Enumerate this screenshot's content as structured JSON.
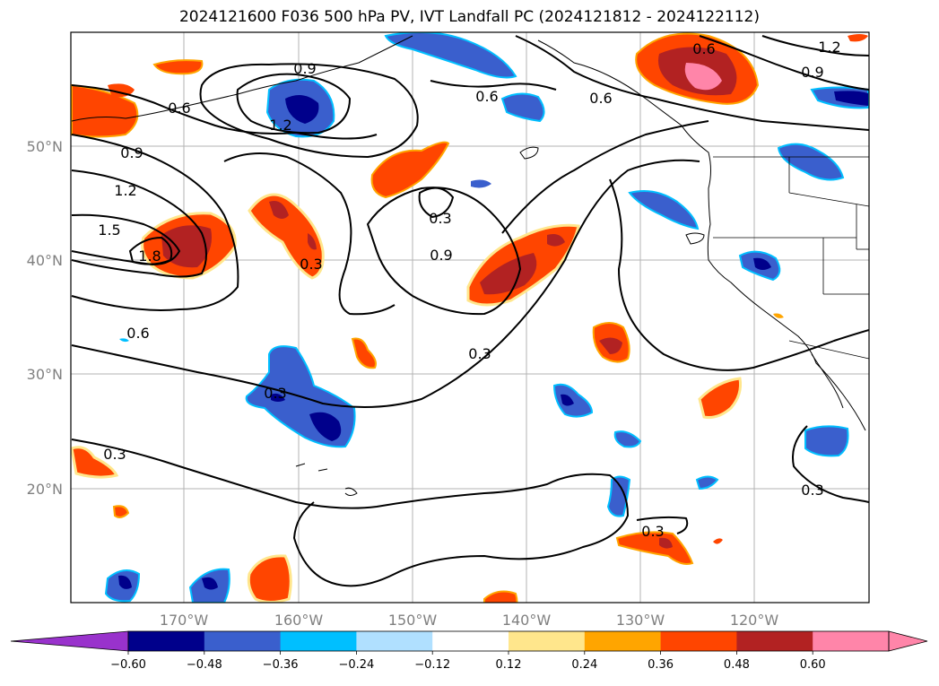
{
  "title": "2024121600 F036 500 hPa PV, IVT Landfall PC (2024121812 - 2024122112)",
  "map": {
    "lat_labels": [
      "50°N",
      "40°N",
      "30°N",
      "20°N"
    ],
    "lon_labels": [
      "170°W",
      "160°W",
      "150°W",
      "140°W",
      "130°W",
      "120°W"
    ],
    "contour_labels": [
      "0.9",
      "0.6",
      "1.2",
      "0.9",
      "1.2",
      "1.5",
      "1.8",
      "0.3",
      "0.9",
      "0.6",
      "0.6",
      "0.3",
      "0.3",
      "0.3",
      "0.3",
      "0.3",
      "0.6",
      "0.6",
      "0.9",
      "1.2",
      "0.3"
    ]
  },
  "colorbar": {
    "ticks": [
      "−0.60",
      "−0.48",
      "−0.36",
      "−0.24",
      "−0.12",
      "0.12",
      "0.24",
      "0.36",
      "0.48",
      "0.60"
    ],
    "colors": [
      "#9932cc",
      "#00008b",
      "#3a5fcd",
      "#00bfff",
      "#b0e0ff",
      "#ffffff",
      "#ffe68c",
      "#ffa500",
      "#ff4500",
      "#b22222",
      "#ff85a9",
      "#ff85a9"
    ]
  }
}
